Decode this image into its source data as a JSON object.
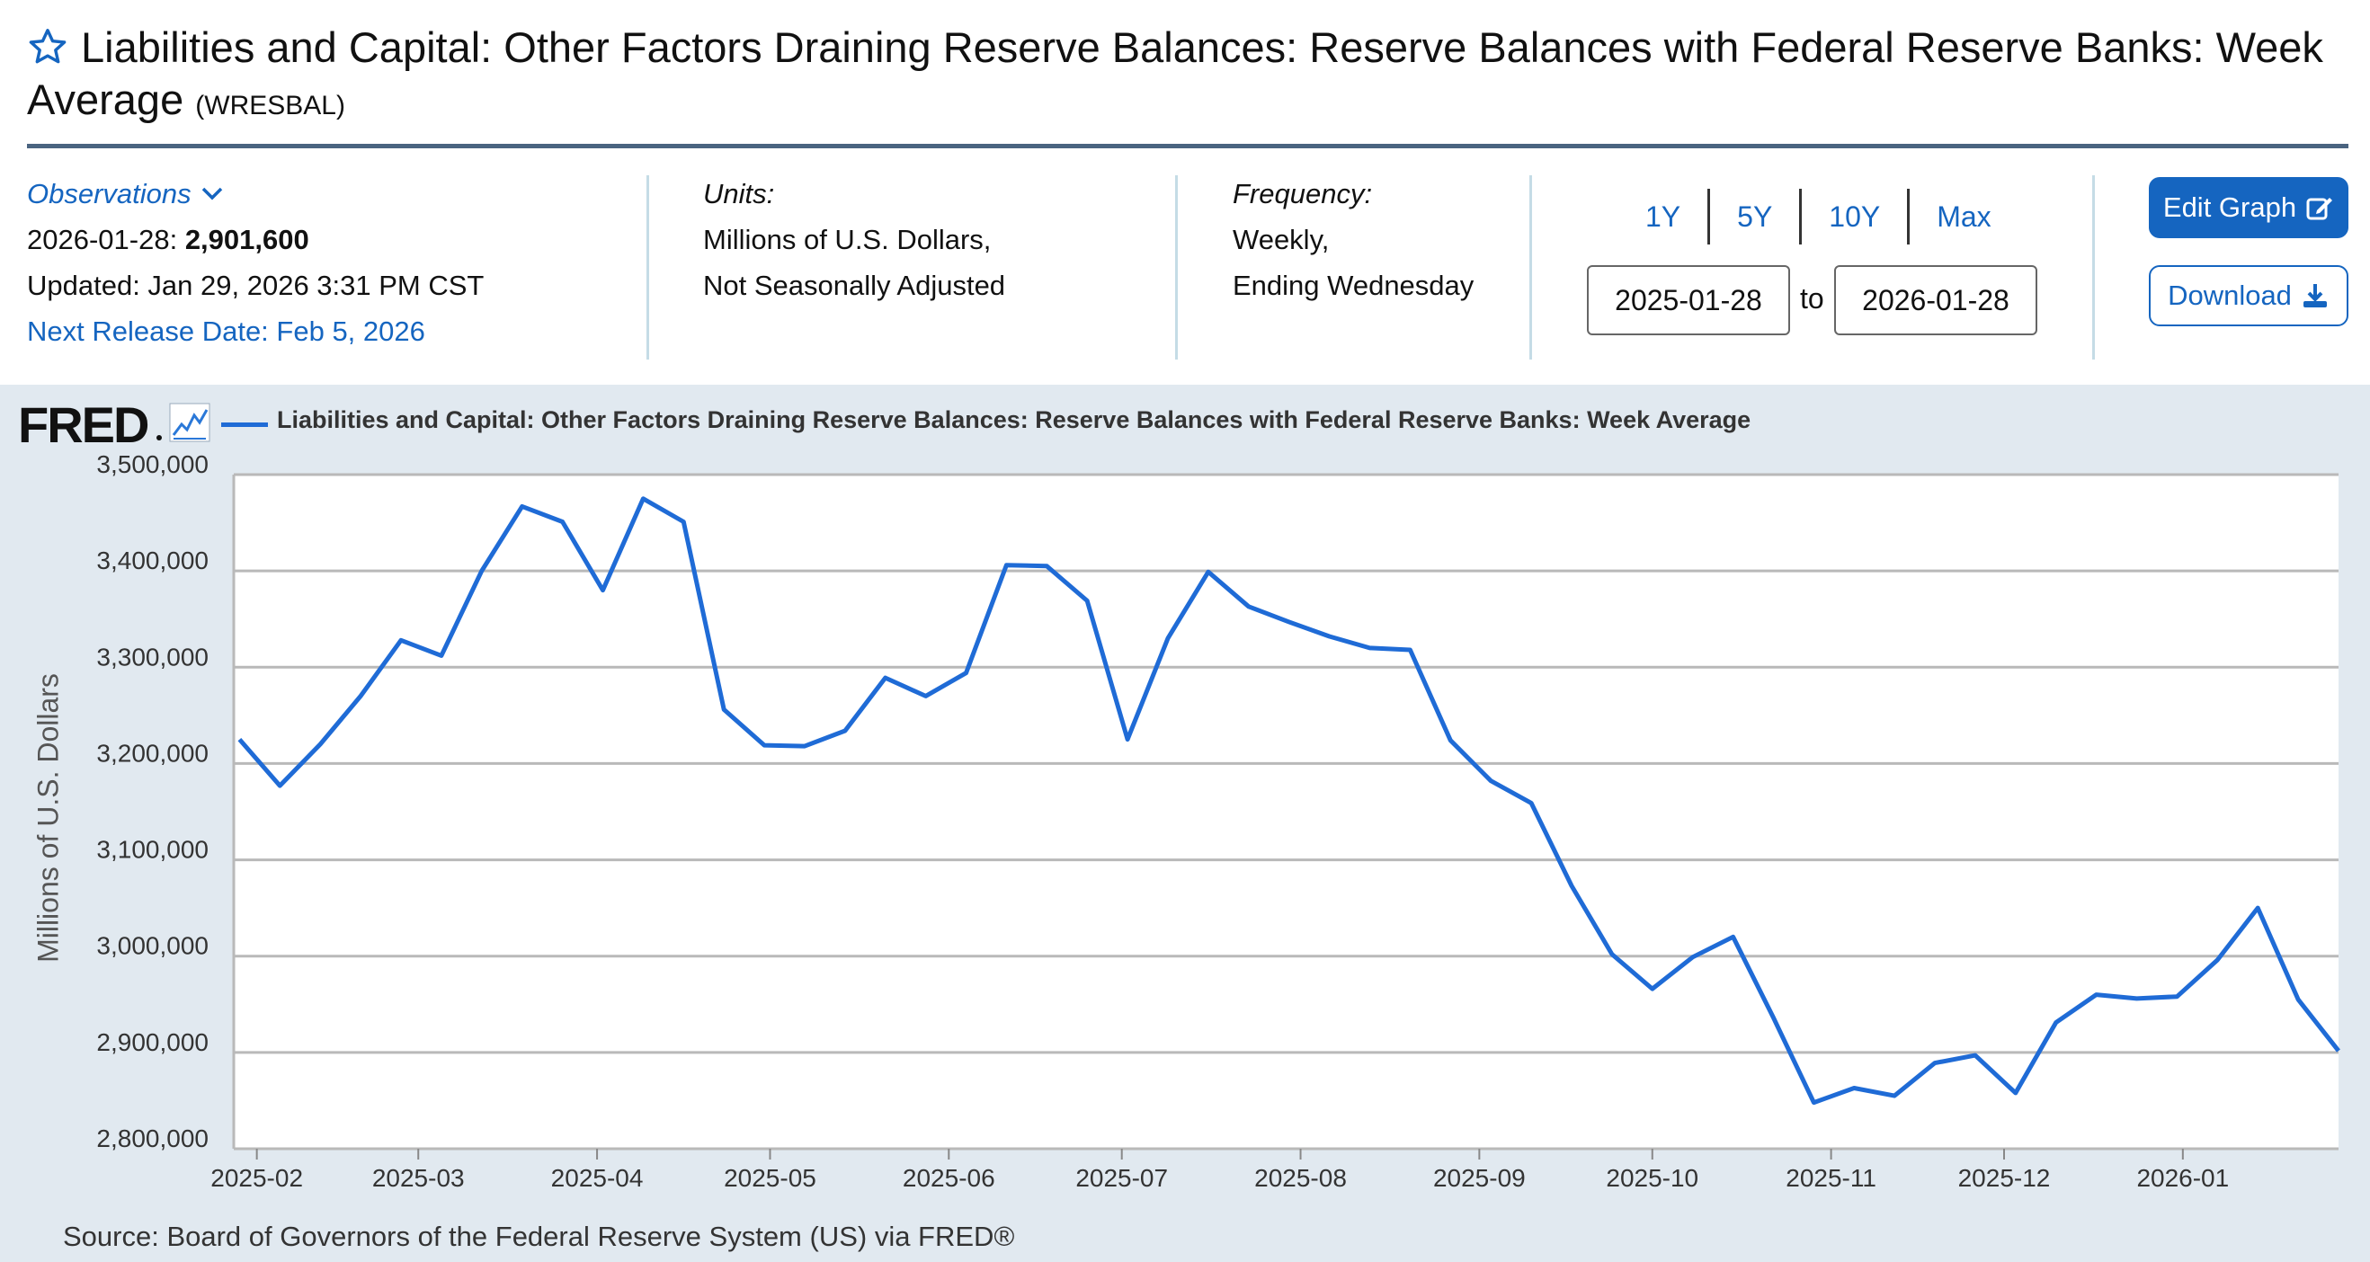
{
  "header": {
    "title": "Liabilities and Capital: Other Factors Draining Reserve Balances: Reserve Balances with Federal Reserve Banks: Week Average",
    "series_id": "(WRESBAL)"
  },
  "observations": {
    "label": "Observations",
    "date": "2026-01-28:",
    "value": "2,901,600",
    "updated": "Updated: Jan 29, 2026 3:31 PM CST",
    "next_release": "Next Release Date: Feb 5, 2026"
  },
  "units": {
    "label": "Units:",
    "line1": "Millions of U.S. Dollars,",
    "line2": "Not Seasonally Adjusted"
  },
  "frequency": {
    "label": "Frequency:",
    "line1": "Weekly,",
    "line2": "Ending Wednesday"
  },
  "range": {
    "tabs": [
      "1Y",
      "5Y",
      "10Y",
      "Max"
    ],
    "start": "2025-01-28",
    "to_label": "to",
    "end": "2026-01-28"
  },
  "buttons": {
    "edit": "Edit Graph",
    "download": "Download"
  },
  "chart_panel": {
    "logo": "FRED",
    "legend": "Liabilities and Capital: Other Factors Draining Reserve Balances: Reserve Balances with Federal Reserve Banks: Week Average",
    "source": "Source: Board of Governors of the Federal Reserve System (US) via FRED®"
  },
  "colors": {
    "accent": "#1565c0",
    "series": "#1f6bd6",
    "panel_bg": "#e1e9f0",
    "rule": "#4a6480"
  },
  "chart_data": {
    "type": "line",
    "ylabel": "Millions of U.S. Dollars",
    "ylim": [
      2800000,
      3500000
    ],
    "xlim": [
      "2025-01-28",
      "2026-01-28"
    ],
    "yticks": [
      "2,800,000",
      "2,900,000",
      "3,000,000",
      "3,100,000",
      "3,200,000",
      "3,300,000",
      "3,400,000",
      "3,500,000"
    ],
    "xticks": [
      "2025-02",
      "2025-03",
      "2025-04",
      "2025-05",
      "2025-06",
      "2025-07",
      "2025-08",
      "2025-09",
      "2025-10",
      "2025-11",
      "2025-12",
      "2026-01"
    ],
    "grid": true,
    "series": [
      {
        "name": "Liabilities and Capital: Other Factors Draining Reserve Balances: Reserve Balances with Federal Reserve Banks: Week Average",
        "x": [
          "2025-01-29",
          "2025-02-05",
          "2025-02-12",
          "2025-02-19",
          "2025-02-26",
          "2025-03-05",
          "2025-03-12",
          "2025-03-19",
          "2025-03-26",
          "2025-04-02",
          "2025-04-09",
          "2025-04-16",
          "2025-04-23",
          "2025-04-30",
          "2025-05-07",
          "2025-05-14",
          "2025-05-21",
          "2025-05-28",
          "2025-06-04",
          "2025-06-11",
          "2025-06-18",
          "2025-06-25",
          "2025-07-02",
          "2025-07-09",
          "2025-07-16",
          "2025-07-23",
          "2025-07-30",
          "2025-08-06",
          "2025-08-13",
          "2025-08-20",
          "2025-08-27",
          "2025-09-03",
          "2025-09-10",
          "2025-09-17",
          "2025-09-24",
          "2025-10-01",
          "2025-10-08",
          "2025-10-15",
          "2025-10-22",
          "2025-10-29",
          "2025-11-05",
          "2025-11-12",
          "2025-11-19",
          "2025-11-26",
          "2025-12-03",
          "2025-12-10",
          "2025-12-17",
          "2025-12-24",
          "2025-12-31",
          "2026-01-07",
          "2026-01-14",
          "2026-01-21",
          "2026-01-28"
        ],
        "y": [
          3225000,
          3177000,
          3220000,
          3270000,
          3328000,
          3312000,
          3400000,
          3467000,
          3451000,
          3380000,
          3475000,
          3451000,
          3256000,
          3219000,
          3218000,
          3234000,
          3289000,
          3270000,
          3294000,
          3406000,
          3405000,
          3369000,
          3225000,
          3330000,
          3399000,
          3363000,
          3347000,
          3332000,
          3320000,
          3318000,
          3224000,
          3182000,
          3159000,
          3073000,
          3002000,
          2966000,
          2999000,
          3020000,
          2936000,
          2848000,
          2863000,
          2855000,
          2889000,
          2897000,
          2858000,
          2931000,
          2960000,
          2956000,
          2958000,
          2996000,
          3050000,
          2955000,
          2901600
        ]
      }
    ]
  }
}
